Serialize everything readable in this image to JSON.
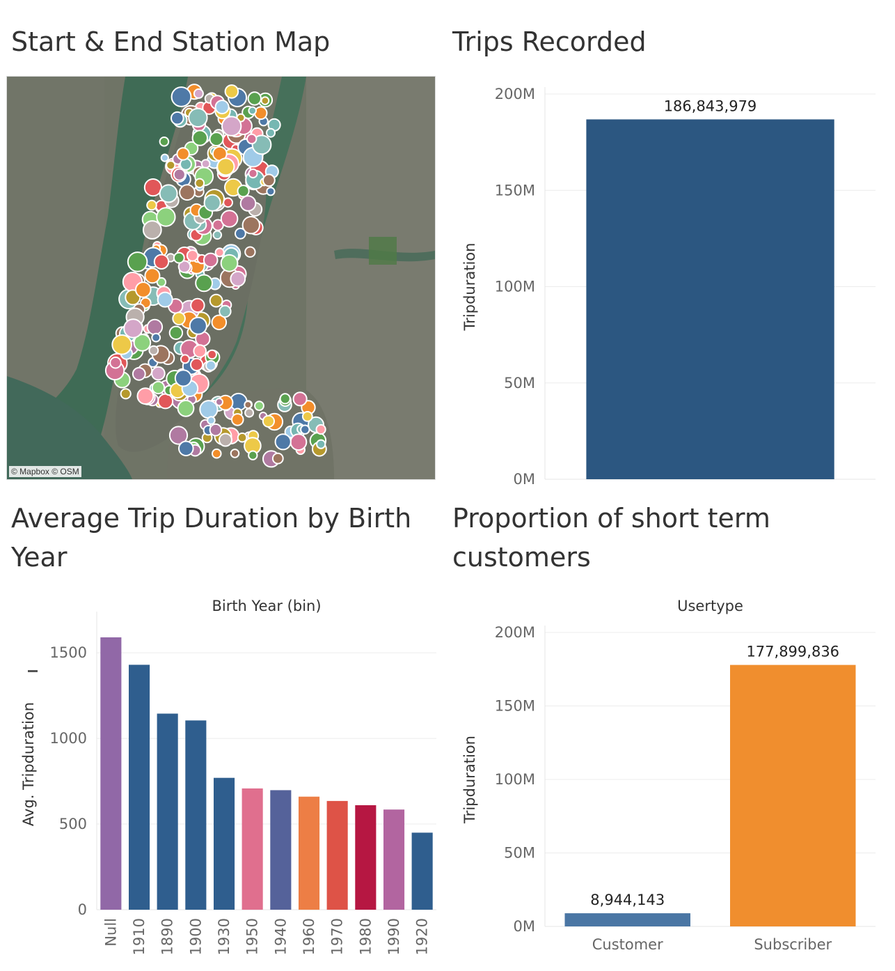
{
  "titles": {
    "map": "Start & End Station Map",
    "trips": "Trips Recorded",
    "avg": "Average Trip Duration by Birth Year",
    "prop": "Proportion of short term customers"
  },
  "map": {
    "attribution": "© Mapbox © OSM"
  },
  "chart_data": [
    {
      "id": "trips",
      "type": "bar",
      "categories": [
        ""
      ],
      "values": [
        186843979
      ],
      "data_labels": [
        "186,843,979"
      ],
      "ylabel": "Tripduration",
      "ylim": [
        0,
        200000000
      ],
      "yticks": [
        0,
        50000000,
        100000000,
        150000000,
        200000000
      ],
      "ytick_labels": [
        "0M",
        "50M",
        "100M",
        "150M",
        "200M"
      ],
      "colors": [
        "#2c5781"
      ],
      "grid": true
    },
    {
      "id": "avg",
      "type": "bar",
      "column_header": "Birth Year (bin)",
      "categories": [
        "Null",
        "1910",
        "1890",
        "1900",
        "1930",
        "1950",
        "1940",
        "1960",
        "1970",
        "1980",
        "1990",
        "1920"
      ],
      "values": [
        1590,
        1430,
        1145,
        1105,
        770,
        708,
        698,
        660,
        635,
        610,
        585,
        450
      ],
      "ylabel": "Avg. Tripduration",
      "ylim": [
        0,
        1700
      ],
      "yticks": [
        0,
        500,
        1000,
        1500
      ],
      "ytick_labels": [
        "0",
        "500",
        "1000",
        "1500"
      ],
      "colors": [
        "#9168a7",
        "#2f5e8e",
        "#2f5e8e",
        "#2f5e8e",
        "#2f5e8e",
        "#e06f8e",
        "#55629a",
        "#ed7e45",
        "#de5347",
        "#b61742",
        "#b265a0",
        "#2f5e8e"
      ],
      "grid": true
    },
    {
      "id": "prop",
      "type": "bar",
      "column_header": "Usertype",
      "categories": [
        "Customer",
        "Subscriber"
      ],
      "values": [
        8944143,
        177899836
      ],
      "data_labels": [
        "8,944,143",
        "177,899,836"
      ],
      "ylabel": "Tripduration",
      "ylim": [
        0,
        200000000
      ],
      "yticks": [
        0,
        50000000,
        100000000,
        150000000,
        200000000
      ],
      "ytick_labels": [
        "0M",
        "50M",
        "100M",
        "150M",
        "200M"
      ],
      "colors": [
        "#4a76a4",
        "#f08e2e"
      ],
      "grid": true
    }
  ]
}
